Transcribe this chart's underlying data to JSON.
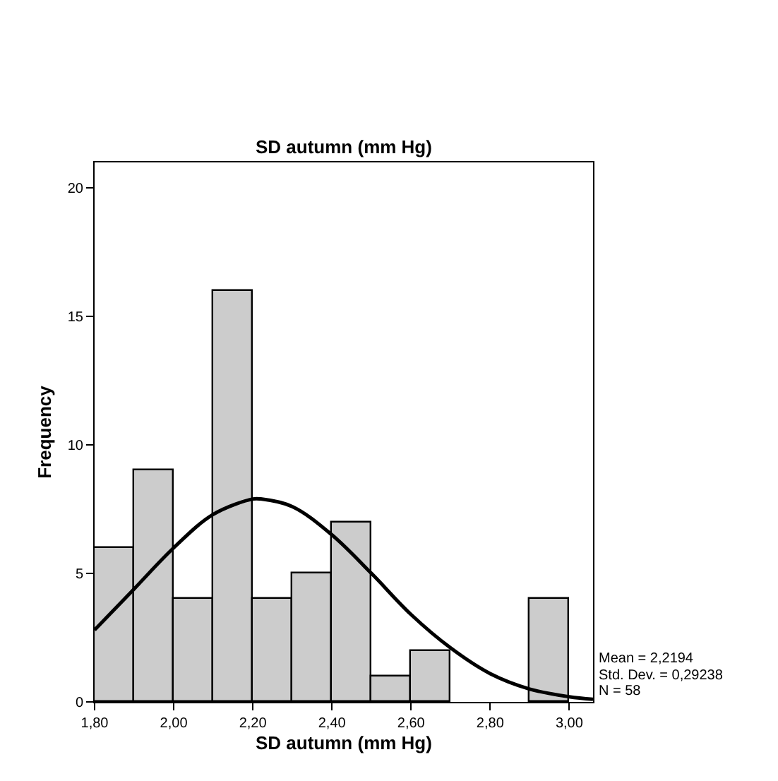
{
  "chart_data": {
    "type": "histogram",
    "title": "SD autumn (mm Hg)",
    "xlabel": "SD autumn (mm Hg)",
    "ylabel": "Frequency",
    "bins": [
      1.8,
      1.9,
      2.0,
      2.1,
      2.2,
      2.3,
      2.4,
      2.5,
      2.6,
      2.7,
      2.8,
      2.9,
      3.0
    ],
    "series": [
      {
        "color": "#cccccc",
        "values": [
          6,
          9,
          4,
          16,
          4,
          5,
          7,
          1,
          2,
          0,
          0,
          4
        ]
      },
      {
        "type": "line",
        "color": "#000000",
        "x": [
          1.8,
          1.9,
          2.0,
          2.1,
          2.2,
          2.22,
          2.3,
          2.4,
          2.5,
          2.6,
          2.7,
          2.8,
          2.9,
          3.0,
          3.06
        ],
        "values": [
          2.8,
          4.4,
          6.0,
          7.3,
          7.9,
          7.9,
          7.6,
          6.5,
          5.0,
          3.4,
          2.1,
          1.1,
          0.5,
          0.2,
          0.1
        ]
      }
    ],
    "xlim": [
      1.8,
      3.06
    ],
    "ylim": [
      0,
      21
    ],
    "xticks": [
      {
        "value": 1.8,
        "label": "1,80"
      },
      {
        "value": 2.0,
        "label": "2,00"
      },
      {
        "value": 2.2,
        "label": "2,20"
      },
      {
        "value": 2.4,
        "label": "2,40"
      },
      {
        "value": 2.6,
        "label": "2,60"
      },
      {
        "value": 2.8,
        "label": "2,80"
      },
      {
        "value": 3.0,
        "label": "3,00"
      }
    ],
    "yticks": [
      0,
      5,
      10,
      15,
      20
    ],
    "annotations": [
      "Mean = 2,2194",
      "Std. Dev. = 0,29238",
      "N = 58"
    ]
  }
}
